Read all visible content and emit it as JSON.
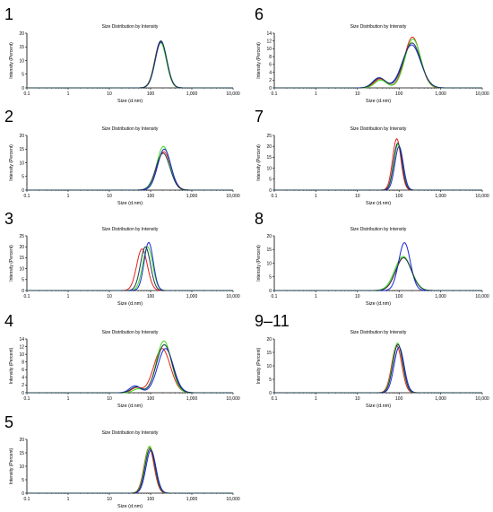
{
  "colors": {
    "red": "#e8201a",
    "green": "#3ddc1e",
    "blue": "#1a24d8",
    "dark": "#1a3a4a",
    "axis": "#000000"
  },
  "chart_data": [
    {
      "panel_label": "1",
      "type": "line",
      "title": "Size Distribution by Intensity",
      "xlabel": "Size (d.nm)",
      "ylabel": "Intensity (Percent)",
      "xscale": "log",
      "xlim": [
        0.1,
        10000
      ],
      "xticks": [
        "0.1",
        "1",
        "10",
        "100",
        "1,000",
        "10,000"
      ],
      "ylim": [
        0,
        20
      ],
      "yticks": [
        0,
        5,
        10,
        15,
        20
      ],
      "grid": false,
      "legend": "none",
      "series": [
        {
          "color": "red",
          "peaks": [
            {
              "center": 175,
              "height": 17,
              "width": 0.14
            }
          ]
        },
        {
          "color": "green",
          "peaks": [
            {
              "center": 175,
              "height": 16.5,
              "width": 0.14
            }
          ]
        },
        {
          "color": "blue",
          "peaks": [
            {
              "center": 180,
              "height": 16.8,
              "width": 0.14
            }
          ]
        },
        {
          "color": "dark",
          "peaks": [
            {
              "center": 178,
              "height": 17.2,
              "width": 0.14
            }
          ]
        }
      ]
    },
    {
      "panel_label": "2",
      "type": "line",
      "title": "Size Distribution by Intensity",
      "xlabel": "Size (d.nm)",
      "ylabel": "Intensity (Percent)",
      "xscale": "log",
      "xlim": [
        0.1,
        10000
      ],
      "xticks": [
        "0.1",
        "1",
        "10",
        "100",
        "1,000",
        "10,000"
      ],
      "ylim": [
        0,
        20
      ],
      "yticks": [
        0,
        5,
        10,
        15,
        20
      ],
      "grid": false,
      "legend": "none",
      "series": [
        {
          "color": "red",
          "peaks": [
            {
              "center": 210,
              "height": 14,
              "width": 0.17
            }
          ]
        },
        {
          "color": "green",
          "peaks": [
            {
              "center": 205,
              "height": 16,
              "width": 0.16
            }
          ]
        },
        {
          "color": "blue",
          "peaks": [
            {
              "center": 215,
              "height": 15,
              "width": 0.16
            }
          ]
        },
        {
          "color": "dark",
          "peaks": [
            {
              "center": 200,
              "height": 13.5,
              "width": 0.17
            }
          ]
        }
      ]
    },
    {
      "panel_label": "3",
      "type": "line",
      "title": "Size Distribution by Intensity",
      "xlabel": "Size (d.nm)",
      "ylabel": "Intensity (Percent)",
      "xscale": "log",
      "xlim": [
        0.1,
        10000
      ],
      "xticks": [
        "0.1",
        "1",
        "10",
        "100",
        "1,000",
        "10,000"
      ],
      "ylim": [
        0,
        25
      ],
      "yticks": [
        0,
        5,
        10,
        15,
        20,
        25
      ],
      "grid": false,
      "legend": "none",
      "series": [
        {
          "color": "red",
          "peaks": [
            {
              "center": 62,
              "height": 19,
              "width": 0.13
            }
          ]
        },
        {
          "color": "green",
          "peaks": [
            {
              "center": 85,
              "height": 20,
              "width": 0.12
            }
          ]
        },
        {
          "color": "blue",
          "peaks": [
            {
              "center": 90,
              "height": 22,
              "width": 0.11
            }
          ]
        },
        {
          "color": "dark",
          "peaks": [
            {
              "center": 75,
              "height": 20,
              "width": 0.12
            }
          ]
        }
      ]
    },
    {
      "panel_label": "4",
      "type": "line",
      "title": "Size Distribution by Intensity",
      "xlabel": "Size (d.nm)",
      "ylabel": "Intensity (Percent)",
      "xscale": "log",
      "xlim": [
        0.1,
        10000
      ],
      "xticks": [
        "0.1",
        "1",
        "10",
        "100",
        "1,000",
        "10,000"
      ],
      "ylim": [
        0,
        14
      ],
      "yticks": [
        0,
        2,
        4,
        6,
        8,
        10,
        12,
        14
      ],
      "grid": false,
      "legend": "none",
      "series": [
        {
          "color": "red",
          "peaks": [
            {
              "center": 45,
              "height": 1.3,
              "width": 0.12
            },
            {
              "center": 190,
              "height": 11.5,
              "width": 0.2
            }
          ]
        },
        {
          "color": "green",
          "peaks": [
            {
              "center": 50,
              "height": 1.0,
              "width": 0.12
            },
            {
              "center": 210,
              "height": 13.5,
              "width": 0.18
            }
          ]
        },
        {
          "color": "blue",
          "peaks": [
            {
              "center": 42,
              "height": 1.8,
              "width": 0.13
            },
            {
              "center": 230,
              "height": 11.5,
              "width": 0.19
            }
          ]
        },
        {
          "color": "dark",
          "peaks": [
            {
              "center": 45,
              "height": 1.5,
              "width": 0.13
            },
            {
              "center": 215,
              "height": 12.5,
              "width": 0.19
            }
          ]
        }
      ]
    },
    {
      "panel_label": "5",
      "type": "line",
      "title": "Size Distribution by Intensity",
      "xlabel": "Size (d.nm)",
      "ylabel": "Intensity (Percent)",
      "xscale": "log",
      "xlim": [
        0.1,
        10000
      ],
      "xticks": [
        "0.1",
        "1",
        "10",
        "100",
        "1,000",
        "10,000"
      ],
      "ylim": [
        0,
        20
      ],
      "yticks": [
        0,
        5,
        10,
        15,
        20
      ],
      "grid": false,
      "legend": "none",
      "series": [
        {
          "color": "red",
          "peaks": [
            {
              "center": 92,
              "height": 17,
              "width": 0.12
            }
          ]
        },
        {
          "color": "green",
          "peaks": [
            {
              "center": 95,
              "height": 17.5,
              "width": 0.12
            }
          ]
        },
        {
          "color": "blue",
          "peaks": [
            {
              "center": 102,
              "height": 16,
              "width": 0.12
            }
          ]
        },
        {
          "color": "dark",
          "peaks": [
            {
              "center": 97,
              "height": 16.5,
              "width": 0.12
            }
          ]
        }
      ]
    },
    {
      "panel_label": "6",
      "type": "line",
      "title": "Size Distribution by Intensity",
      "xlabel": "Size (d.nm)",
      "ylabel": "Intensity (Percent)",
      "xscale": "log",
      "xlim": [
        0.1,
        10000
      ],
      "xticks": [
        "0.1",
        "1",
        "10",
        "100",
        "1,000",
        "10,000"
      ],
      "ylim": [
        0,
        14
      ],
      "yticks": [
        0,
        2,
        4,
        6,
        8,
        10,
        12,
        14
      ],
      "grid": false,
      "legend": "none",
      "series": [
        {
          "color": "red",
          "peaks": [
            {
              "center": 35,
              "height": 2.3,
              "width": 0.14
            },
            {
              "center": 210,
              "height": 13,
              "width": 0.19
            }
          ]
        },
        {
          "color": "green",
          "peaks": [
            {
              "center": 36,
              "height": 2.0,
              "width": 0.14
            },
            {
              "center": 215,
              "height": 12.5,
              "width": 0.19
            }
          ]
        },
        {
          "color": "blue",
          "peaks": [
            {
              "center": 33,
              "height": 2.6,
              "width": 0.15
            },
            {
              "center": 200,
              "height": 11,
              "width": 0.22
            }
          ]
        },
        {
          "color": "dark",
          "peaks": [
            {
              "center": 34,
              "height": 2.5,
              "width": 0.15
            },
            {
              "center": 205,
              "height": 11.5,
              "width": 0.21
            }
          ]
        }
      ]
    },
    {
      "panel_label": "7",
      "type": "line",
      "title": "Size Distribution by Intensity",
      "xlabel": "Size (d.nm)",
      "ylabel": "Intensity (Percent)",
      "xscale": "log",
      "xlim": [
        0.1,
        10000
      ],
      "xticks": [
        "0.1",
        "1",
        "10",
        "100",
        "1,000",
        "10,000"
      ],
      "ylim": [
        0,
        25
      ],
      "yticks": [
        0,
        5,
        10,
        15,
        20,
        25
      ],
      "grid": false,
      "legend": "none",
      "series": [
        {
          "color": "red",
          "peaks": [
            {
              "center": 88,
              "height": 23.5,
              "width": 0.1
            }
          ]
        },
        {
          "color": "green",
          "peaks": [
            {
              "center": 95,
              "height": 21,
              "width": 0.1
            }
          ]
        },
        {
          "color": "blue",
          "peaks": [
            {
              "center": 100,
              "height": 20,
              "width": 0.1
            }
          ]
        },
        {
          "color": "dark",
          "peaks": [
            {
              "center": 93,
              "height": 21.5,
              "width": 0.1
            }
          ]
        }
      ]
    },
    {
      "panel_label": "8",
      "type": "line",
      "title": "Size Distribution by Intensity",
      "xlabel": "Size (d.nm)",
      "ylabel": "Intensity (Percent)",
      "xscale": "log",
      "xlim": [
        0.1,
        10000
      ],
      "xticks": [
        "0.1",
        "1",
        "10",
        "100",
        "1,000",
        "10,000"
      ],
      "ylim": [
        0,
        20
      ],
      "yticks": [
        0,
        5,
        10,
        15,
        20
      ],
      "grid": false,
      "legend": "none",
      "series": [
        {
          "color": "red",
          "peaks": [
            {
              "center": 130,
              "height": 12,
              "width": 0.19
            }
          ]
        },
        {
          "color": "green",
          "peaks": [
            {
              "center": 125,
              "height": 12.5,
              "width": 0.2
            }
          ]
        },
        {
          "color": "blue",
          "peaks": [
            {
              "center": 135,
              "height": 17.5,
              "width": 0.14
            }
          ]
        },
        {
          "color": "dark",
          "peaks": [
            {
              "center": 128,
              "height": 12,
              "width": 0.19
            }
          ]
        }
      ]
    },
    {
      "panel_label": "9–11",
      "type": "line",
      "title": "Size Distribution by Intensity",
      "xlabel": "Size (d.nm)",
      "ylabel": "Intensity (Percent)",
      "xscale": "log",
      "xlim": [
        0.1,
        10000
      ],
      "xticks": [
        "0.1",
        "1",
        "10",
        "100",
        "1,000",
        "10,000"
      ],
      "ylim": [
        0,
        20
      ],
      "yticks": [
        0,
        5,
        10,
        15,
        20
      ],
      "grid": false,
      "legend": "none",
      "series": [
        {
          "color": "red",
          "peaks": [
            {
              "center": 88,
              "height": 17.5,
              "width": 0.12
            }
          ]
        },
        {
          "color": "green",
          "peaks": [
            {
              "center": 92,
              "height": 18.5,
              "width": 0.12
            }
          ]
        },
        {
          "color": "blue",
          "peaks": [
            {
              "center": 100,
              "height": 17,
              "width": 0.12
            }
          ]
        },
        {
          "color": "dark",
          "peaks": [
            {
              "center": 94,
              "height": 18,
              "width": 0.12
            }
          ]
        }
      ]
    }
  ]
}
